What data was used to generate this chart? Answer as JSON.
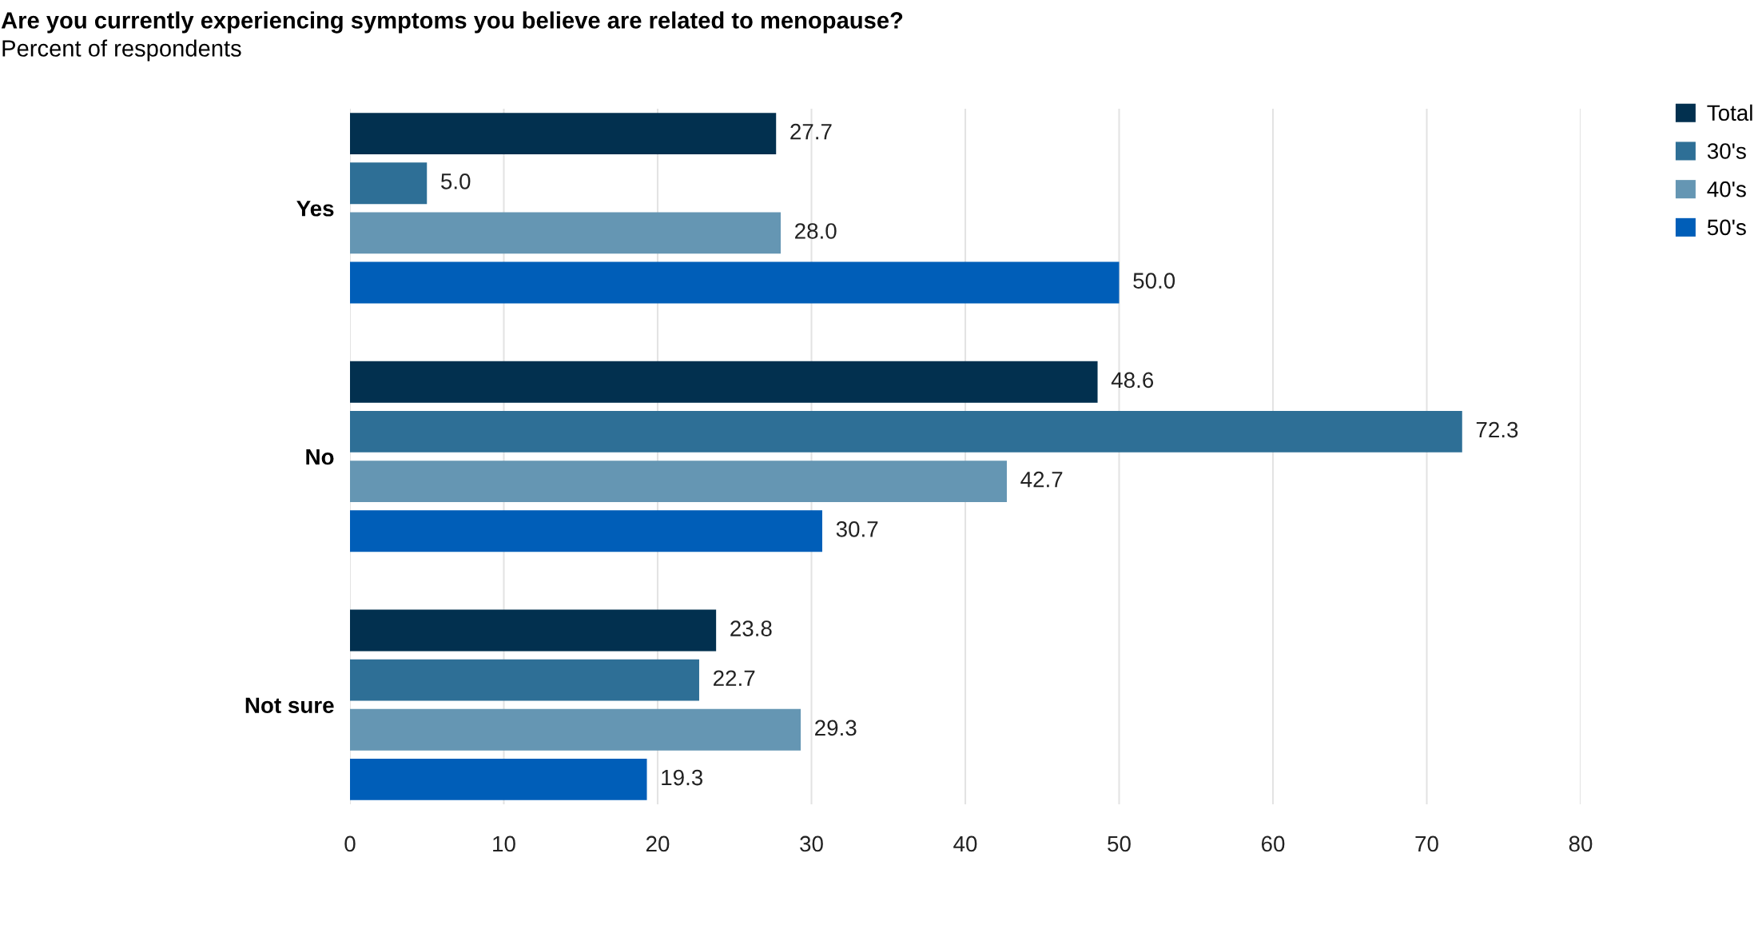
{
  "chart_data": {
    "type": "bar",
    "orientation": "horizontal",
    "title": "Are you currently experiencing symptoms you believe are related to menopause?",
    "subtitle": "Percent of respondents",
    "categories": [
      "Yes",
      "No",
      "Not sure"
    ],
    "series": [
      {
        "name": "Total",
        "color": "#02304f",
        "values": [
          27.7,
          48.6,
          23.8
        ],
        "value_labels": [
          "27.7",
          "48.6",
          "23.8"
        ]
      },
      {
        "name": "30's",
        "color": "#2e6f96",
        "values": [
          5,
          72.3,
          22.7
        ],
        "value_labels": [
          "5.0",
          "72.3",
          "22.7"
        ]
      },
      {
        "name": "40's",
        "color": "#6596b3",
        "values": [
          28,
          42.7,
          29.3
        ],
        "value_labels": [
          "28.0",
          "42.7",
          "29.3"
        ]
      },
      {
        "name": "50's",
        "color": "#005eb8",
        "values": [
          50,
          30.7,
          19.3
        ],
        "value_labels": [
          "50.0",
          "30.7",
          "19.3"
        ]
      }
    ],
    "xlim": [
      0,
      80
    ],
    "xticks": [
      0,
      10,
      20,
      30,
      40,
      50,
      60,
      70,
      80
    ],
    "grid": "x",
    "legend": "top right"
  }
}
